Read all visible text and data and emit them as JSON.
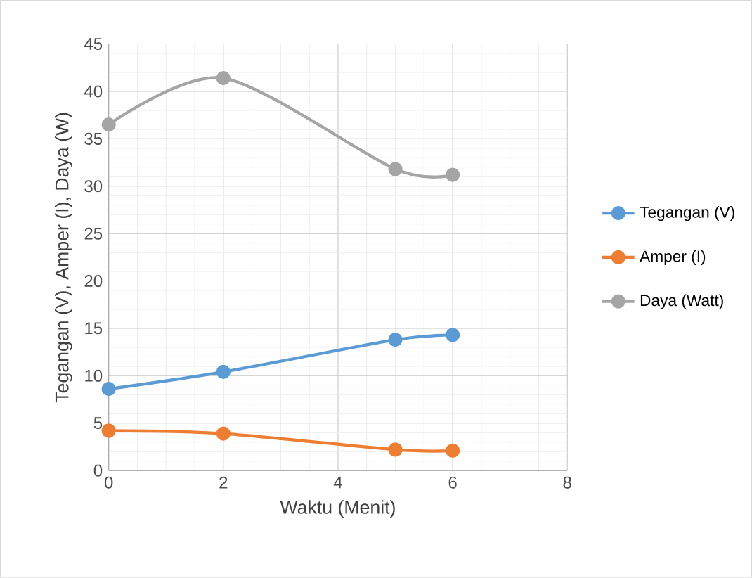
{
  "chart_data": {
    "type": "line",
    "xlabel": "Waktu (Menit)",
    "ylabel": "Tegangan (V), Amper (I), Daya (W)",
    "x": [
      0,
      2,
      5,
      6
    ],
    "series": [
      {
        "name": "Tegangan (V)",
        "color": "#5b9bd5",
        "values": [
          8.6,
          10.4,
          13.8,
          14.3
        ]
      },
      {
        "name": "Amper (I)",
        "color": "#ed7d31",
        "values": [
          4.2,
          3.9,
          2.2,
          2.1
        ]
      },
      {
        "name": "Daya (Watt)",
        "color": "#a5a5a5",
        "values": [
          36.5,
          41.4,
          31.8,
          31.2
        ]
      }
    ],
    "xlim": [
      0,
      8
    ],
    "xticks": [
      0,
      2,
      4,
      6,
      8
    ],
    "ylim": [
      0,
      45
    ],
    "yticks": [
      0,
      5,
      10,
      15,
      20,
      25,
      30,
      35,
      40,
      45
    ],
    "grid": true,
    "legend": "right",
    "marker": "circle",
    "line_style": "solid"
  }
}
